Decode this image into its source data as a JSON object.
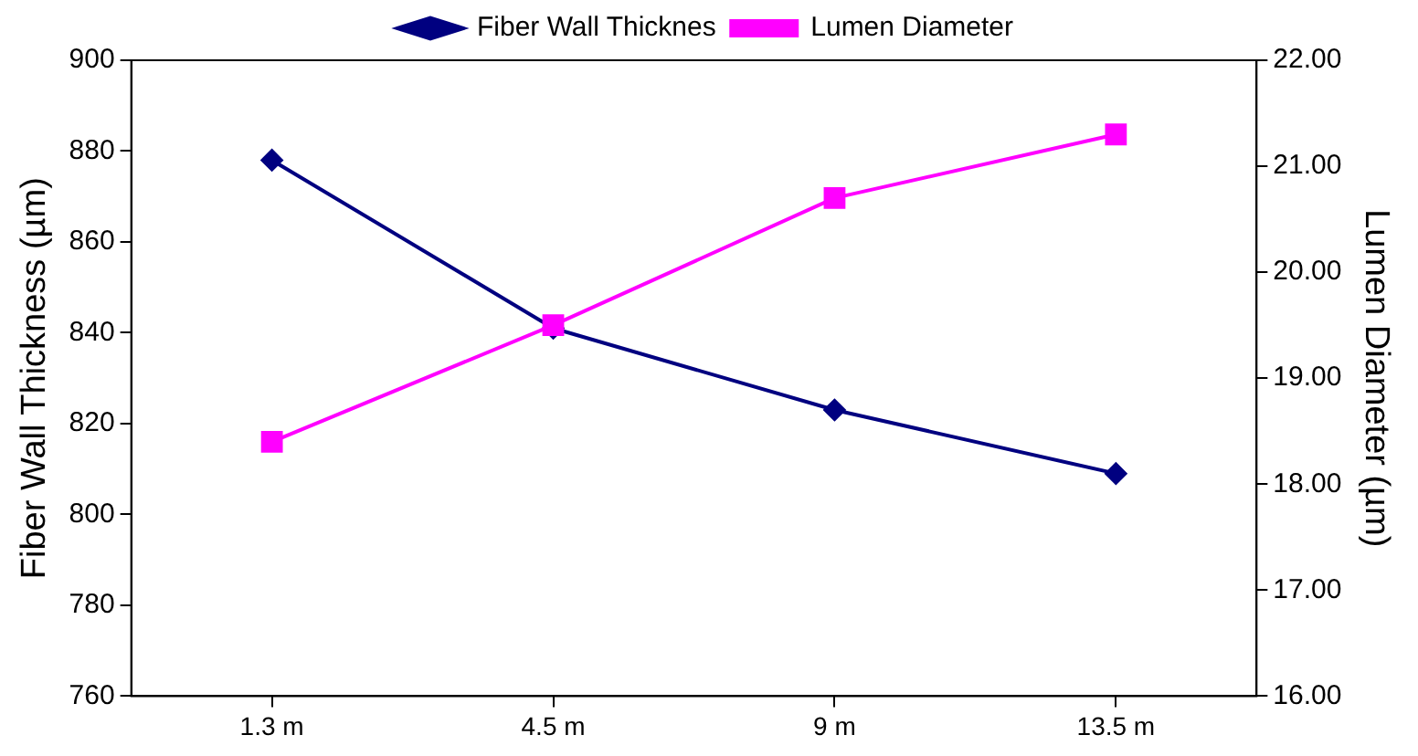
{
  "chart_data": {
    "type": "line",
    "categories": [
      "1.3 m",
      "4.5 m",
      "9 m",
      "13.5 m"
    ],
    "ylabel": "Fiber Wall Thickness (µm)",
    "y2label": "Lumen Diameter (µm)",
    "ylim": [
      760,
      900
    ],
    "yticks": [
      760,
      780,
      800,
      820,
      840,
      860,
      880,
      900
    ],
    "y2lim": [
      16,
      22
    ],
    "y2ticks": [
      {
        "value": 16,
        "label": "16.00"
      },
      {
        "value": 17,
        "label": "17.00"
      },
      {
        "value": 18,
        "label": "18.00"
      },
      {
        "value": 19,
        "label": "19.00"
      },
      {
        "value": 20,
        "label": "20.00"
      },
      {
        "value": 21,
        "label": "21.00"
      },
      {
        "value": 22,
        "label": "22.00"
      }
    ],
    "grid": false,
    "legend": "top",
    "line_style": "solid",
    "series": [
      {
        "name": "Fiber Wall Thicknes",
        "color": "#000080",
        "marker": "diamond",
        "values": [
          878,
          841,
          823,
          809
        ]
      },
      {
        "name": "Lumen Diameter",
        "color": "#ff00ff",
        "marker": "square",
        "axis": "y2",
        "values": [
          18.4,
          19.5,
          20.7,
          21.3
        ]
      }
    ]
  }
}
